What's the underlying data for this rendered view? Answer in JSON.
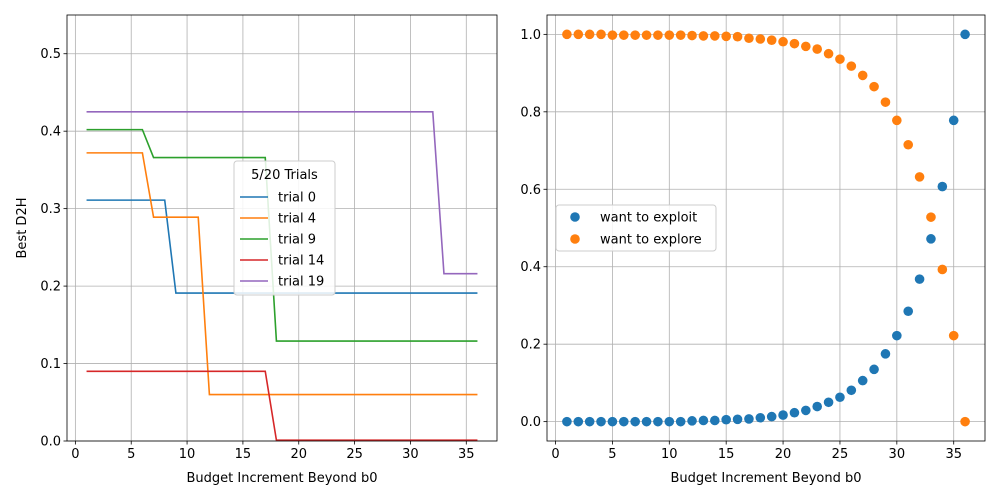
{
  "chart_data": [
    {
      "type": "line",
      "xlabel": "Budget Increment Beyond b0",
      "ylabel": "Best D2H",
      "xlim": [
        -0.75,
        37.75
      ],
      "ylim": [
        0,
        0.55
      ],
      "xticks": [
        0,
        5,
        10,
        15,
        20,
        25,
        30,
        35
      ],
      "yticks": [
        0.0,
        0.1,
        0.2,
        0.3,
        0.4,
        0.5
      ],
      "xtick_labels": [
        "0",
        "5",
        "10",
        "15",
        "20",
        "25",
        "30",
        "35"
      ],
      "ytick_labels": [
        "0.0",
        "0.1",
        "0.2",
        "0.3",
        "0.4",
        "0.5"
      ],
      "grid": true,
      "legend_title": "5/20 Trials",
      "legend_position": "center",
      "series": [
        {
          "name": "trial 0",
          "color": "#1f77b4",
          "x": [
            1,
            2,
            3,
            4,
            5,
            6,
            7,
            8,
            9,
            10,
            11,
            12,
            13,
            14,
            15,
            16,
            17,
            18,
            19,
            20,
            21,
            22,
            23,
            24,
            25,
            26,
            27,
            28,
            29,
            30,
            31,
            32,
            33,
            34,
            35,
            36
          ],
          "y": [
            0.311,
            0.311,
            0.311,
            0.311,
            0.311,
            0.311,
            0.311,
            0.311,
            0.191,
            0.191,
            0.191,
            0.191,
            0.191,
            0.191,
            0.191,
            0.191,
            0.191,
            0.191,
            0.191,
            0.191,
            0.191,
            0.191,
            0.191,
            0.191,
            0.191,
            0.191,
            0.191,
            0.191,
            0.191,
            0.191,
            0.191,
            0.191,
            0.191,
            0.191,
            0.191,
            0.191
          ]
        },
        {
          "name": "trial 4",
          "color": "#ff7f0e",
          "x": [
            1,
            2,
            3,
            4,
            5,
            6,
            7,
            8,
            9,
            10,
            11,
            12,
            13,
            14,
            15,
            16,
            17,
            18,
            19,
            20,
            21,
            22,
            23,
            24,
            25,
            26,
            27,
            28,
            29,
            30,
            31,
            32,
            33,
            34,
            35,
            36
          ],
          "y": [
            0.372,
            0.372,
            0.372,
            0.372,
            0.372,
            0.372,
            0.289,
            0.289,
            0.289,
            0.289,
            0.289,
            0.06,
            0.06,
            0.06,
            0.06,
            0.06,
            0.06,
            0.06,
            0.06,
            0.06,
            0.06,
            0.06,
            0.06,
            0.06,
            0.06,
            0.06,
            0.06,
            0.06,
            0.06,
            0.06,
            0.06,
            0.06,
            0.06,
            0.06,
            0.06,
            0.06
          ]
        },
        {
          "name": "trial 9",
          "color": "#2ca02c",
          "x": [
            1,
            2,
            3,
            4,
            5,
            6,
            7,
            8,
            9,
            10,
            11,
            12,
            13,
            14,
            15,
            16,
            17,
            18,
            19,
            20,
            21,
            22,
            23,
            24,
            25,
            26,
            27,
            28,
            29,
            30,
            31,
            32,
            33,
            34,
            35,
            36
          ],
          "y": [
            0.402,
            0.402,
            0.402,
            0.402,
            0.402,
            0.402,
            0.366,
            0.366,
            0.366,
            0.366,
            0.366,
            0.366,
            0.366,
            0.366,
            0.366,
            0.366,
            0.366,
            0.129,
            0.129,
            0.129,
            0.129,
            0.129,
            0.129,
            0.129,
            0.129,
            0.129,
            0.129,
            0.129,
            0.129,
            0.129,
            0.129,
            0.129,
            0.129,
            0.129,
            0.129,
            0.129
          ]
        },
        {
          "name": "trial 14",
          "color": "#d62728",
          "x": [
            1,
            2,
            3,
            4,
            5,
            6,
            7,
            8,
            9,
            10,
            11,
            12,
            13,
            14,
            15,
            16,
            17,
            18,
            19,
            20,
            21,
            22,
            23,
            24,
            25,
            26,
            27,
            28,
            29,
            30,
            31,
            32,
            33,
            34,
            35,
            36
          ],
          "y": [
            0.09,
            0.09,
            0.09,
            0.09,
            0.09,
            0.09,
            0.09,
            0.09,
            0.09,
            0.09,
            0.09,
            0.09,
            0.09,
            0.09,
            0.09,
            0.09,
            0.09,
            0.001,
            0.001,
            0.001,
            0.001,
            0.001,
            0.001,
            0.001,
            0.001,
            0.001,
            0.001,
            0.001,
            0.001,
            0.001,
            0.001,
            0.001,
            0.001,
            0.001,
            0.001,
            0.001
          ]
        },
        {
          "name": "trial 19",
          "color": "#9467bd",
          "x": [
            1,
            2,
            3,
            4,
            5,
            6,
            7,
            8,
            9,
            10,
            11,
            12,
            13,
            14,
            15,
            16,
            17,
            18,
            19,
            20,
            21,
            22,
            23,
            24,
            25,
            26,
            27,
            28,
            29,
            30,
            31,
            32,
            33,
            34,
            35,
            36
          ],
          "y": [
            0.425,
            0.425,
            0.425,
            0.425,
            0.425,
            0.425,
            0.425,
            0.425,
            0.425,
            0.425,
            0.425,
            0.425,
            0.425,
            0.425,
            0.425,
            0.425,
            0.425,
            0.425,
            0.425,
            0.425,
            0.425,
            0.425,
            0.425,
            0.425,
            0.425,
            0.425,
            0.425,
            0.425,
            0.425,
            0.425,
            0.425,
            0.425,
            0.216,
            0.216,
            0.216,
            0.216
          ]
        }
      ]
    },
    {
      "type": "scatter",
      "xlabel": "Budget Increment Beyond b0",
      "ylabel": "",
      "xlim": [
        -0.75,
        37.75
      ],
      "ylim": [
        -0.05,
        1.05
      ],
      "xticks": [
        0,
        5,
        10,
        15,
        20,
        25,
        30,
        35
      ],
      "yticks": [
        0.0,
        0.2,
        0.4,
        0.6,
        0.8,
        1.0
      ],
      "xtick_labels": [
        "0",
        "5",
        "10",
        "15",
        "20",
        "25",
        "30",
        "35"
      ],
      "ytick_labels": [
        "0.0",
        "0.2",
        "0.4",
        "0.6",
        "0.8",
        "1.0"
      ],
      "grid": true,
      "legend_position": "center-left",
      "series": [
        {
          "name": "want to exploit",
          "color": "#1f77b4",
          "x": [
            1,
            2,
            3,
            4,
            5,
            6,
            7,
            8,
            9,
            10,
            11,
            12,
            13,
            14,
            15,
            16,
            17,
            18,
            19,
            20,
            21,
            22,
            23,
            24,
            25,
            26,
            27,
            28,
            29,
            30,
            31,
            32,
            33,
            34,
            35,
            36
          ],
          "y": [
            0.0,
            0.0,
            0.0,
            0.0,
            0.0,
            0.0,
            0.0,
            0.0,
            0.0,
            0.0,
            0.0,
            0.002,
            0.003,
            0.003,
            0.005,
            0.006,
            0.007,
            0.01,
            0.013,
            0.017,
            0.023,
            0.029,
            0.039,
            0.05,
            0.063,
            0.081,
            0.106,
            0.135,
            0.175,
            0.222,
            0.285,
            0.368,
            0.472,
            0.607,
            0.778,
            1.0
          ]
        },
        {
          "name": "want to explore",
          "color": "#ff7f0e",
          "x": [
            1,
            2,
            3,
            4,
            5,
            6,
            7,
            8,
            9,
            10,
            11,
            12,
            13,
            14,
            15,
            16,
            17,
            18,
            19,
            20,
            21,
            22,
            23,
            24,
            25,
            26,
            27,
            28,
            29,
            30,
            31,
            32,
            33,
            34,
            35,
            36
          ],
          "y": [
            1.0,
            1.0,
            1.0,
            1.0,
            0.998,
            0.998,
            0.998,
            0.998,
            0.998,
            0.998,
            0.998,
            0.997,
            0.996,
            0.996,
            0.995,
            0.994,
            0.99,
            0.988,
            0.985,
            0.981,
            0.976,
            0.969,
            0.962,
            0.95,
            0.936,
            0.918,
            0.894,
            0.865,
            0.825,
            0.778,
            0.715,
            0.632,
            0.528,
            0.393,
            0.222,
            0.0
          ]
        }
      ]
    }
  ]
}
